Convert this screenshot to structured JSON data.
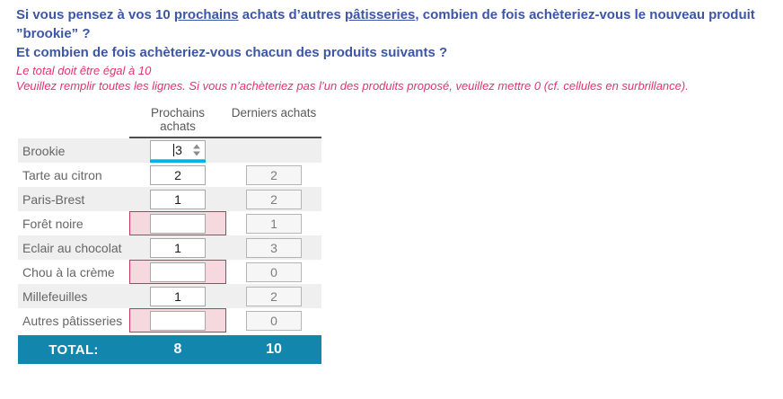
{
  "question": {
    "prefix": "Si vous pensez à vos 10 ",
    "underline1": "prochains",
    "mid": " achats d’autres ",
    "underline2": "pâtisseries",
    "suffix": ", combien de fois achèteriez-vous le nouveau produit ”brookie” ?",
    "line2": "Et combien de fois achèteriez-vous chacun des produits suivants ?"
  },
  "instructions": {
    "line1": "Le total doit être égal à 10",
    "line2": "Veuillez remplir toutes les lignes. Si vous n’achèteriez pas l’un des produits proposé, veuillez mettre 0 (cf. cellules en surbrillance)."
  },
  "table": {
    "columns": {
      "next": "Prochains achats",
      "last": "Derniers achats"
    },
    "rows": [
      {
        "label": "Brookie",
        "next_value": "3",
        "last_value": "",
        "state": "focused"
      },
      {
        "label": "Tarte au citron",
        "next_value": "2",
        "last_value": "2",
        "state": "filled"
      },
      {
        "label": "Paris-Brest",
        "next_value": "1",
        "last_value": "2",
        "state": "filled"
      },
      {
        "label": "Forêt noire",
        "next_value": "",
        "last_value": "1",
        "state": "highlight"
      },
      {
        "label": "Eclair au chocolat",
        "next_value": "1",
        "last_value": "3",
        "state": "filled"
      },
      {
        "label": "Chou à la crème",
        "next_value": "",
        "last_value": "0",
        "state": "highlight"
      },
      {
        "label": "Millefeuilles",
        "next_value": "1",
        "last_value": "2",
        "state": "filled"
      },
      {
        "label": "Autres pâtisseries",
        "next_value": "",
        "last_value": "0",
        "state": "highlight"
      }
    ],
    "total": {
      "label": "TOTAL:",
      "next": "8",
      "last": "10"
    }
  },
  "colors": {
    "question_blue": "#3d56a6",
    "alert_pink": "#e5336f",
    "highlight_bg": "#f5d9de",
    "highlight_border": "#c73463",
    "focus_cyan": "#00b2e3",
    "total_teal": "#1286ad",
    "row_stripe": "#efefef"
  }
}
